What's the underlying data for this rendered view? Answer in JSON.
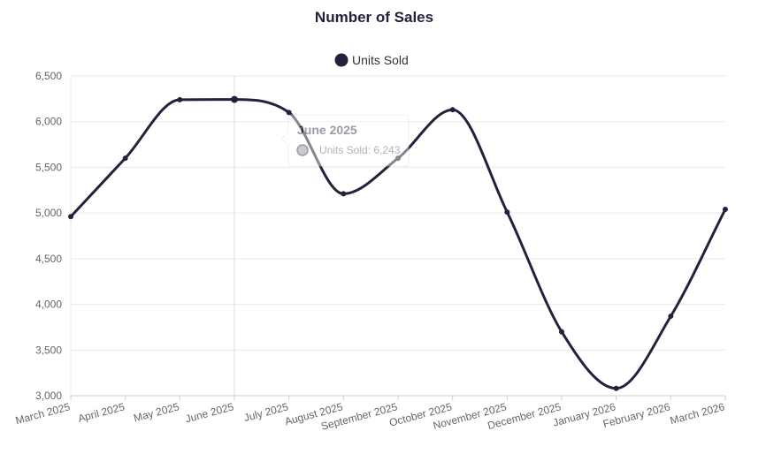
{
  "chart_data": {
    "type": "line",
    "title": "Number of Sales",
    "xlabel": "",
    "ylabel": "",
    "categories": [
      "March 2025",
      "April 2025",
      "May 2025",
      "June 2025",
      "July 2025",
      "August 2025",
      "September 2025",
      "October 2025",
      "November 2025",
      "December 2025",
      "January 2026",
      "February 2026",
      "March 2026"
    ],
    "series": [
      {
        "name": "Units Sold",
        "values": [
          4960,
          5600,
          6240,
          6243,
          6100,
          5210,
          5600,
          6130,
          5010,
          3700,
          3080,
          3870,
          5040
        ]
      }
    ],
    "ylim": [
      3000,
      6500
    ],
    "yticks": [
      3000,
      3500,
      4000,
      4500,
      5000,
      5500,
      6000,
      6500
    ],
    "ytick_labels": [
      "3,000",
      "3,500",
      "4,000",
      "4,500",
      "5,000",
      "5,500",
      "6,000",
      "6,500"
    ],
    "grid": true,
    "legend": "top-center",
    "colors": {
      "line": "#25213d",
      "grid": "#e9e9e9",
      "axis_text": "#666666",
      "title": "#25213d",
      "hover_line": "#dddddd",
      "tooltip_text": "#9a9aa6",
      "tooltip_marker": "#8a8794"
    },
    "tooltip": {
      "title": "June 2025",
      "label": "Units Sold: 6,243",
      "category_index": 3
    }
  }
}
